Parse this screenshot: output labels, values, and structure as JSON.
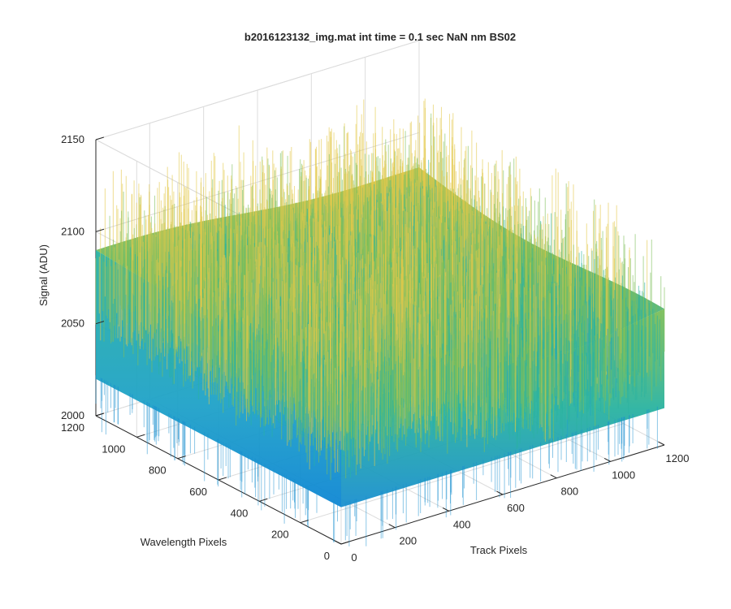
{
  "chart_data": {
    "type": "surface",
    "title": "b2016123132_img.mat int time = 0.1 sec  NaN nm BS02",
    "xlabel": "Track Pixels",
    "ylabel": "Wavelength Pixels",
    "zlabel": "Signal (ADU)",
    "xlim": [
      0,
      1200
    ],
    "ylim": [
      0,
      1200
    ],
    "zlim": [
      2000,
      2150
    ],
    "x_ticks": [
      "0",
      "200",
      "400",
      "600",
      "800",
      "1000",
      "1200"
    ],
    "y_ticks": [
      "0",
      "200",
      "400",
      "600",
      "800",
      "1000",
      "1200"
    ],
    "z_ticks": [
      "2000",
      "2050",
      "2100",
      "2150"
    ],
    "grid": true,
    "colormap": [
      "#0072bd",
      "#1fa2c8",
      "#2ab3a0",
      "#7ebf5a",
      "#e4c84a"
    ],
    "surface_summary": {
      "mean_signal": 2068,
      "min_signal": 2010,
      "max_signal": 2140,
      "peak_x": 0,
      "peak_y": 1200
    }
  }
}
